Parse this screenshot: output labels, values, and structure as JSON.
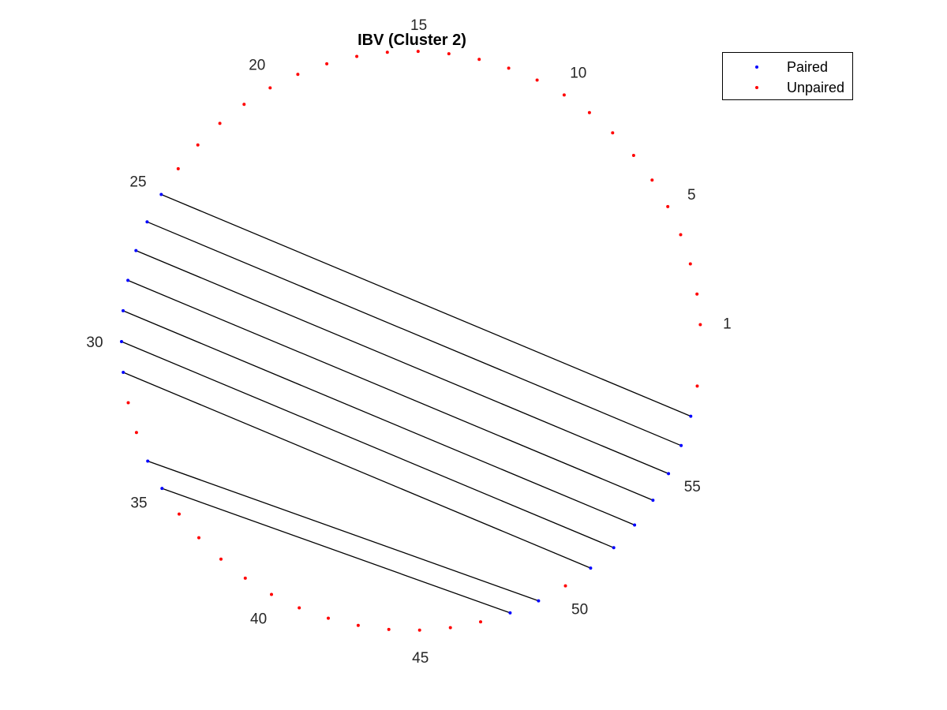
{
  "chart_data": {
    "type": "scatter",
    "title": "IBV (Cluster 2)",
    "sequence_length": 58,
    "position_labels": [
      "1",
      "5",
      "10",
      "15",
      "20",
      "25",
      "30",
      "35",
      "40",
      "45",
      "50",
      "55"
    ],
    "labeled_positions": [
      1,
      5,
      10,
      15,
      20,
      25,
      30,
      35,
      40,
      45,
      50,
      55
    ],
    "pairs": [
      [
        25,
        57
      ],
      [
        26,
        56
      ],
      [
        27,
        55
      ],
      [
        28,
        54
      ],
      [
        29,
        53
      ],
      [
        30,
        52
      ],
      [
        31,
        51
      ],
      [
        34,
        49
      ],
      [
        35,
        48
      ]
    ],
    "series": [
      {
        "name": "Paired",
        "color": "#0000ff",
        "positions": [
          25,
          26,
          27,
          28,
          29,
          30,
          31,
          34,
          35,
          48,
          49,
          51,
          52,
          53,
          54,
          55,
          56,
          57
        ]
      },
      {
        "name": "Unpaired",
        "color": "#ff0000",
        "positions": [
          1,
          2,
          3,
          4,
          5,
          6,
          7,
          8,
          9,
          10,
          11,
          12,
          13,
          14,
          15,
          16,
          17,
          18,
          19,
          20,
          21,
          22,
          23,
          24,
          32,
          33,
          36,
          37,
          38,
          39,
          40,
          41,
          42,
          43,
          44,
          45,
          46,
          47,
          50,
          58
        ]
      }
    ],
    "pair_line_color": "#000000",
    "legend_position": "top-right"
  }
}
